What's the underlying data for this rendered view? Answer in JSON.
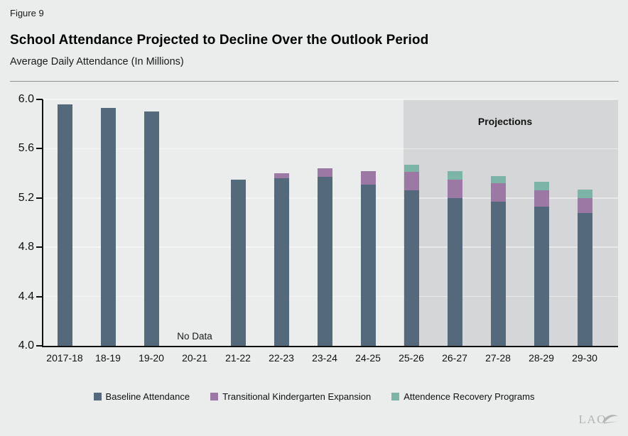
{
  "figure_label": "Figure 9",
  "title": "School Attendance Projected to Decline Over the Outlook Period",
  "subtitle": "Average Daily Attendance (In Millions)",
  "logo_text": "LAO",
  "annotations": {
    "projections_label": "Projections",
    "no_data_label": "No Data"
  },
  "colors": {
    "background": "#ebecec",
    "projection_shading": "#d5d6d7",
    "baseline": "#54697b",
    "tk_expansion": "#9c79a4",
    "attendance_recovery": "#7db4a8",
    "axis": "#111111",
    "gridline": "rgba(255,255,255,0.45)"
  },
  "chart_data": {
    "type": "bar",
    "stacked": true,
    "title": "School Attendance Projected to Decline Over the Outlook Period",
    "ylabel": "Average Daily Attendance (In Millions)",
    "xlabel": "",
    "ylim": [
      4.0,
      6.0
    ],
    "yticks": [
      4.0,
      4.4,
      4.8,
      5.2,
      5.6,
      6.0
    ],
    "grid": true,
    "legend_position": "bottom",
    "categories": [
      "2017-18",
      "18-19",
      "19-20",
      "20-21",
      "21-22",
      "22-23",
      "23-24",
      "24-25",
      "25-26",
      "26-27",
      "27-28",
      "28-29",
      "29-30"
    ],
    "series": [
      {
        "name": "Baseline Attendance",
        "color": "#54697b",
        "note": "absolute level in millions",
        "values": [
          5.96,
          5.93,
          5.9,
          null,
          5.35,
          5.36,
          5.37,
          5.31,
          5.26,
          5.2,
          5.17,
          5.13,
          5.08
        ]
      },
      {
        "name": "Transitional Kindergarten Expansion",
        "color": "#9c79a4",
        "note": "increment stacked on baseline",
        "values": [
          0,
          0,
          0,
          null,
          0,
          0.04,
          0.07,
          0.11,
          0.15,
          0.15,
          0.15,
          0.13,
          0.12
        ]
      },
      {
        "name": "Attendence Recovery Programs",
        "color": "#7db4a8",
        "note": "increment stacked on top",
        "values": [
          0,
          0,
          0,
          null,
          0,
          0,
          0,
          0,
          0.06,
          0.07,
          0.06,
          0.07,
          0.07
        ]
      }
    ],
    "no_data_category": "20-21",
    "projections_start_category": "25-26"
  }
}
